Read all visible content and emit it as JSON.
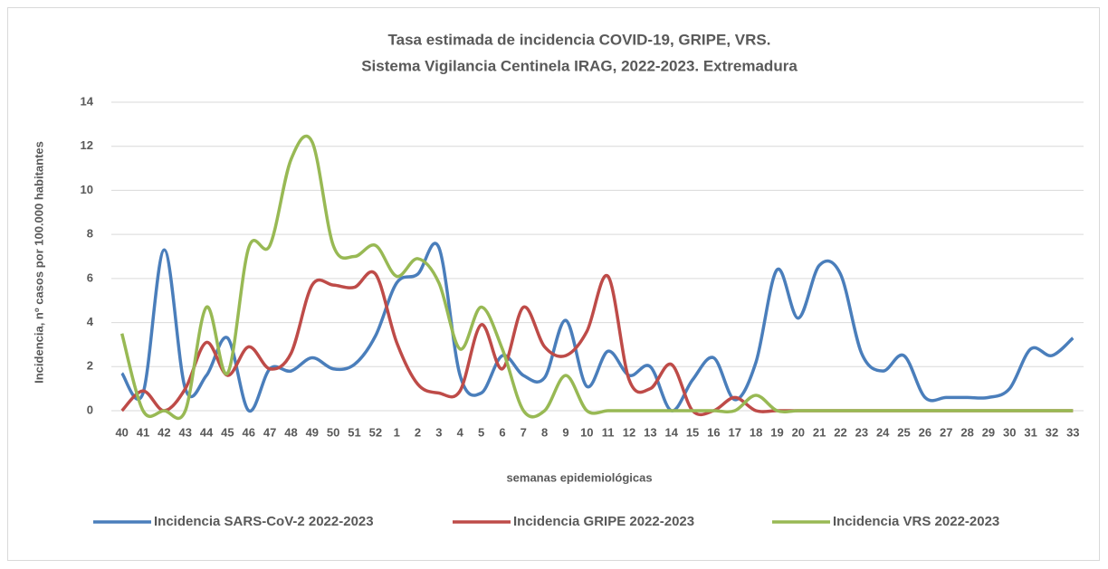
{
  "chart_data": {
    "type": "line",
    "title": "Tasa estimada de incidencia COVID-19, GRIPE, VRS.",
    "subtitle": "Sistema Vigilancia Centinela IRAG, 2022-2023. Extremadura",
    "x_label": "semanas epidemiológicas",
    "y_label": "Incidencia, nº casos por 100.000 habitantes",
    "categories": [
      "40",
      "41",
      "42",
      "43",
      "44",
      "45",
      "46",
      "47",
      "48",
      "49",
      "50",
      "51",
      "52",
      "1",
      "2",
      "3",
      "4",
      "5",
      "6",
      "7",
      "8",
      "9",
      "10",
      "11",
      "12",
      "13",
      "14",
      "15",
      "16",
      "17",
      "18",
      "19",
      "20",
      "21",
      "22",
      "23",
      "24",
      "25",
      "26",
      "27",
      "28",
      "29",
      "30",
      "31",
      "32",
      "33"
    ],
    "ylim": [
      0,
      14
    ],
    "yticks": [
      0,
      2,
      4,
      6,
      8,
      10,
      12,
      14
    ],
    "grid": true,
    "smooth": true,
    "legend": "bottom",
    "series": [
      {
        "name": "Incidencia SARS-CoV-2 2022-2023",
        "color": "#4a7ebb",
        "values": [
          1.7,
          0.8,
          7.3,
          1.0,
          1.6,
          3.3,
          0,
          1.9,
          1.8,
          2.4,
          1.9,
          2.1,
          3.4,
          5.8,
          6.2,
          7.4,
          1.6,
          0.8,
          2.5,
          1.6,
          1.5,
          4.1,
          1.1,
          2.7,
          1.6,
          2.0,
          0,
          1.4,
          2.4,
          0.5,
          2.2,
          6.4,
          4.2,
          6.6,
          6.2,
          2.6,
          1.8,
          2.5,
          0.6,
          0.6,
          0.6,
          0.6,
          1.0,
          2.8,
          2.5,
          3.3
        ]
      },
      {
        "name": "Incidencia GRIPE 2022-2023",
        "color": "#be4b48",
        "values": [
          0,
          0.9,
          0,
          1.0,
          3.1,
          1.6,
          2.9,
          1.9,
          2.6,
          5.7,
          5.7,
          5.6,
          6.2,
          3.1,
          1.2,
          0.8,
          0.9,
          3.9,
          1.9,
          4.7,
          2.9,
          2.5,
          3.6,
          6.1,
          1.4,
          1.0,
          2.1,
          0,
          0,
          0.6,
          0,
          0,
          0,
          0,
          0,
          0,
          0,
          0,
          0,
          0,
          0,
          0,
          0,
          0,
          0,
          0
        ]
      },
      {
        "name": "Incidencia VRS 2022-2023",
        "color": "#98b954",
        "values": [
          3.5,
          0,
          0,
          0,
          4.7,
          1.7,
          7.4,
          7.5,
          11.4,
          12.2,
          7.5,
          7.0,
          7.5,
          6.1,
          6.9,
          5.8,
          2.8,
          4.7,
          2.8,
          0,
          0,
          1.6,
          0,
          0,
          0,
          0,
          0,
          0,
          0,
          0,
          0.7,
          0,
          0,
          0,
          0,
          0,
          0,
          0,
          0,
          0,
          0,
          0,
          0,
          0,
          0,
          0
        ]
      }
    ]
  }
}
